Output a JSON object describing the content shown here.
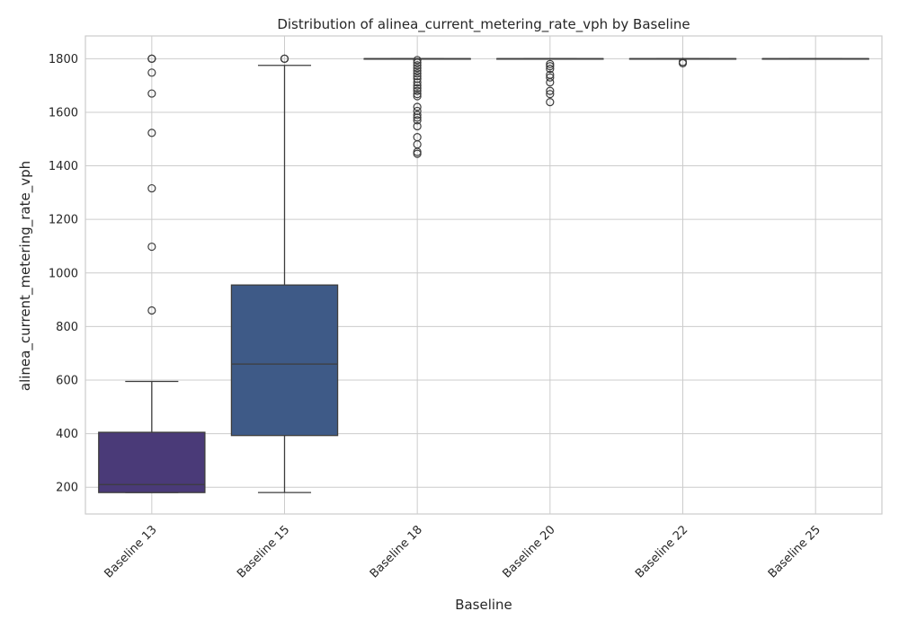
{
  "chart_data": {
    "type": "box",
    "title": "Distribution of alinea_current_metering_rate_vph by Baseline",
    "xlabel": "Baseline",
    "ylabel": "alinea_current_metering_rate_vph",
    "ylim": [
      100,
      1885
    ],
    "yticks": [
      200,
      400,
      600,
      800,
      1000,
      1200,
      1400,
      1600,
      1800
    ],
    "grid": true,
    "categories": [
      "Baseline 13",
      "Baseline 15",
      "Baseline 18",
      "Baseline 20",
      "Baseline 22",
      "Baseline 25"
    ],
    "colors": [
      "#4a3a78",
      "#3e5a87",
      "#2f7f8e",
      "#24a187",
      "#5cc16d",
      "#bde04a"
    ],
    "boxes": [
      {
        "name": "Baseline 13",
        "whisker_low": 180,
        "q1": 180,
        "median": 210,
        "q3": 405,
        "whisker_high": 595,
        "fliers": [
          860,
          1098,
          1316,
          1523,
          1670,
          1748,
          1800,
          1800,
          1800
        ]
      },
      {
        "name": "Baseline 15",
        "whisker_low": 180,
        "q1": 393,
        "median": 660,
        "q3": 955,
        "whisker_high": 1775,
        "fliers": [
          1800,
          1800,
          1800
        ]
      },
      {
        "name": "Baseline 18",
        "whisker_low": 1800,
        "q1": 1800,
        "median": 1800,
        "q3": 1800,
        "whisker_high": 1800,
        "fliers": [
          1795,
          1785,
          1775,
          1765,
          1755,
          1745,
          1735,
          1725,
          1712,
          1700,
          1690,
          1680,
          1668,
          1660,
          1620,
          1605,
          1590,
          1580,
          1570,
          1548,
          1507,
          1480,
          1452,
          1445
        ]
      },
      {
        "name": "Baseline 20",
        "whisker_low": 1800,
        "q1": 1800,
        "median": 1800,
        "q3": 1800,
        "whisker_high": 1800,
        "fliers": [
          1780,
          1772,
          1762,
          1740,
          1730,
          1712,
          1680,
          1668,
          1638
        ]
      },
      {
        "name": "Baseline 22",
        "whisker_low": 1800,
        "q1": 1800,
        "median": 1800,
        "q3": 1800,
        "whisker_high": 1800,
        "fliers": [
          1788,
          1783
        ]
      },
      {
        "name": "Baseline 25",
        "whisker_low": 1800,
        "q1": 1800,
        "median": 1800,
        "q3": 1800,
        "whisker_high": 1800,
        "fliers": []
      }
    ]
  }
}
